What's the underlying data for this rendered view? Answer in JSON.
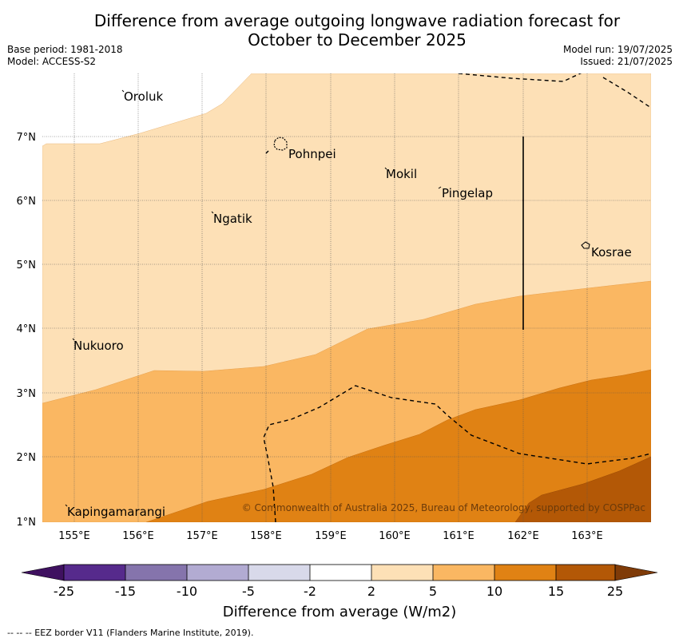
{
  "title_line1": "Difference from average outgoing longwave radiation forecast for",
  "title_line2": "October to December 2025",
  "base_period": "Base period: 1981-2018",
  "model": "Model: ACCESS-S2",
  "model_run": "Model run: 19/07/2025",
  "issued": "Issued: 21/07/2025",
  "copyright": "© Commonwealth of Australia 2025, Bureau of Meteorology, supported by COSPPac",
  "places": {
    "oroluk": "Oroluk",
    "pohnpei": "Pohnpei",
    "mokil": "Mokil",
    "pingelap": "Pingelap",
    "ngatik": "Ngatik",
    "kosrae": "Kosrae",
    "nukuoro": "Nukuoro",
    "kapingamarangi": "Kapingamarangi"
  },
  "lon_ticks": [
    "155°E",
    "156°E",
    "157°E",
    "158°E",
    "159°E",
    "160°E",
    "161°E",
    "162°E",
    "163°E"
  ],
  "lat_ticks": [
    "7°N",
    "6°N",
    "5°N",
    "4°N",
    "3°N",
    "2°N",
    "1°N"
  ],
  "colorbar": {
    "title": "Difference from average (W/m2)",
    "tick_labels": [
      "-25",
      "-15",
      "-10",
      "-5",
      "-2",
      "2",
      "5",
      "10",
      "15",
      "25"
    ],
    "colors": [
      "#3f1160",
      "#562a8c",
      "#8574ac",
      "#b2abd2",
      "#d8d9ea",
      "#ffffff",
      "#fde0b6",
      "#fab762",
      "#e08214",
      "#b35806",
      "#7f3b08"
    ]
  },
  "footnote": "--  --  -- EEZ border V11 (Flanders Marine Institute, 2019)."
}
